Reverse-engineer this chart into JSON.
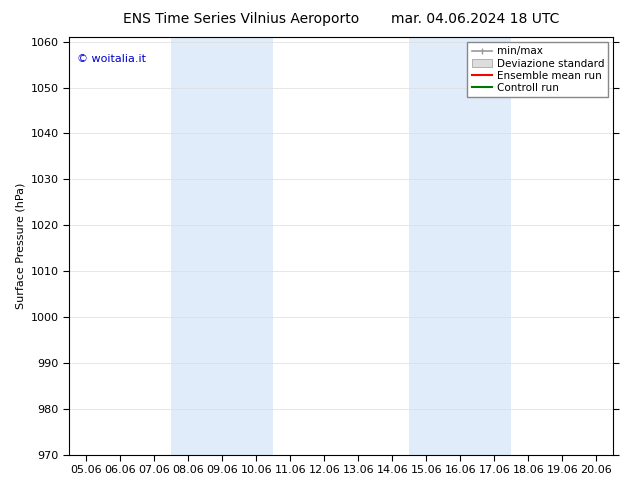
{
  "title_left": "ENS Time Series Vilnius Aeroporto",
  "title_right": "mar. 04.06.2024 18 UTC",
  "ylabel": "Surface Pressure (hPa)",
  "ylim": [
    970,
    1061
  ],
  "yticks": [
    970,
    980,
    990,
    1000,
    1010,
    1020,
    1030,
    1040,
    1050,
    1060
  ],
  "xtick_labels": [
    "05.06",
    "06.06",
    "07.06",
    "08.06",
    "09.06",
    "10.06",
    "11.06",
    "12.06",
    "13.06",
    "14.06",
    "15.06",
    "16.06",
    "17.06",
    "18.06",
    "19.06",
    "20.06"
  ],
  "background_color": "#ffffff",
  "plot_bg_color": "#ffffff",
  "shade_color": "#cce0f5",
  "shade_alpha": 0.6,
  "shade_bands_labels": [
    "08.06",
    "09.06",
    "10.06",
    "15.06",
    "16.06",
    "17.06"
  ],
  "shade_band_ranges": [
    [
      3,
      5
    ],
    [
      10,
      12
    ]
  ],
  "watermark": "© woitalia.it",
  "watermark_color": "#0000cc",
  "legend_entries": [
    "min/max",
    "Deviazione standard",
    "Ensemble mean run",
    "Controll run"
  ],
  "legend_line_colors": [
    "#999999",
    "#bbbbbb",
    "#ff0000",
    "#007700"
  ],
  "title_fontsize": 10,
  "axis_fontsize": 8,
  "tick_fontsize": 8
}
